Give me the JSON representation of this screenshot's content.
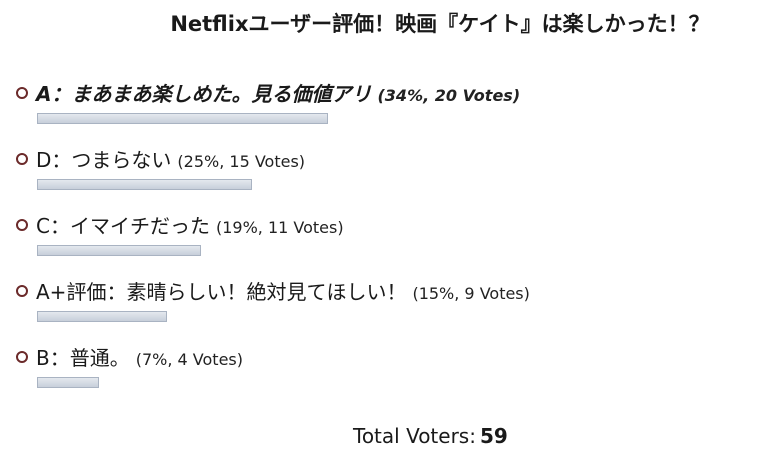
{
  "poll": {
    "title": "Netflixユーザー評価！映画『ケイト』は楽しかった！？",
    "answers": [
      {
        "label": "A：まあまあ楽しめた。見る価値アリ",
        "meta": "(34%, 20 Votes)",
        "percent": 34
      },
      {
        "label": "D：つまらない",
        "meta": "(25%, 15 Votes)",
        "percent": 25
      },
      {
        "label": "C：イマイチだった",
        "meta": "(19%, 11 Votes)",
        "percent": 19
      },
      {
        "label": "A+評価：素晴らしい！絶対見てほしい！",
        "meta": "(15%, 9 Votes)",
        "percent": 15
      },
      {
        "label": "B：普通。",
        "meta": "(7%, 4 Votes)",
        "percent": 7
      }
    ],
    "total_label": "Total Voters:",
    "total_count": "59"
  },
  "colors": {
    "bar_border": "#a9b3c2",
    "radio_ring": "#6b2a2a"
  }
}
